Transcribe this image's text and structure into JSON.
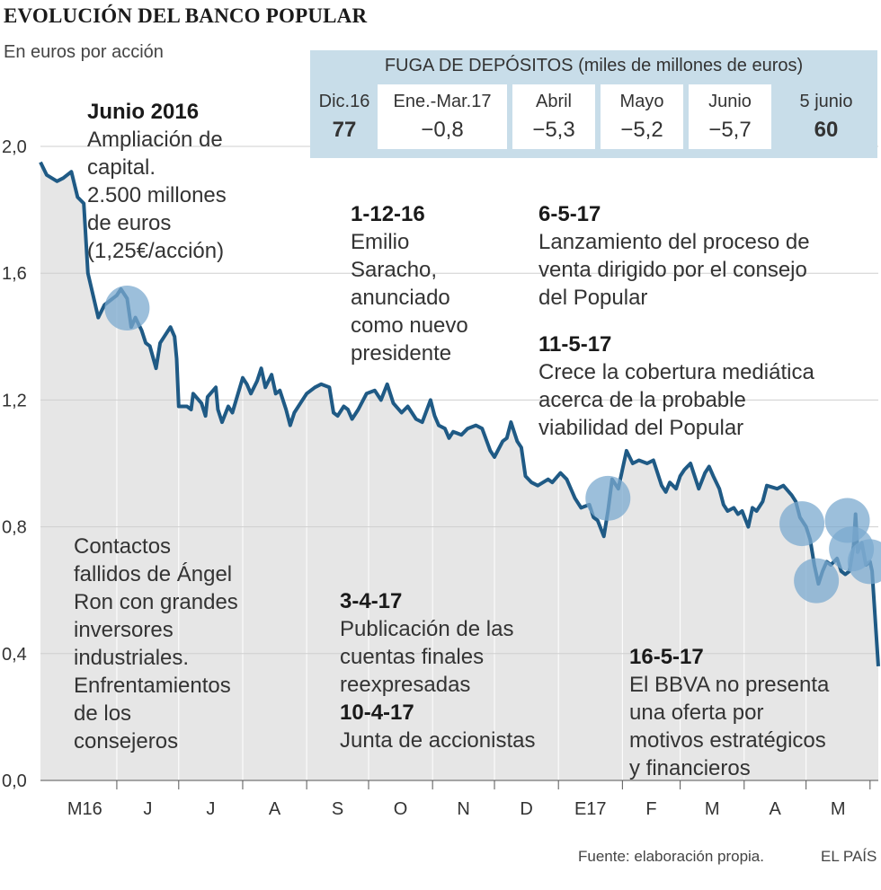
{
  "header": {
    "title": "EVOLUCIÓN DEL BANCO POPULAR",
    "subtitle": "En euros por acción"
  },
  "deposits": {
    "title": "FUGA DE DEPÓSITOS (miles de millones de euros)",
    "items": [
      {
        "label": "Dic.16",
        "value": "77",
        "highlight": true
      },
      {
        "label": "Ene.-Mar.17",
        "value": "−0,8",
        "highlight": false
      },
      {
        "label": "Abril",
        "value": "−5,3",
        "highlight": false
      },
      {
        "label": "Mayo",
        "value": "−5,2",
        "highlight": false
      },
      {
        "label": "Junio",
        "value": "−5,7",
        "highlight": false
      },
      {
        "label": "5 junio",
        "value": "60",
        "highlight": true
      }
    ]
  },
  "annotations": {
    "junio2016": {
      "date": "Junio 2016",
      "lines": [
        "Ampliación de",
        "capital.",
        "2.500 millones",
        "de euros",
        "(1,25€/acción)"
      ]
    },
    "saracho": {
      "date": "1-12-16",
      "lines": [
        "Emilio",
        "Saracho,",
        "anunciado",
        "como nuevo",
        "presidente"
      ]
    },
    "venta": {
      "date": "6-5-17",
      "lines": [
        "Lanzamiento del proceso de",
        "venta dirigido por el consejo",
        "del Popular"
      ]
    },
    "cobertura": {
      "date": "11-5-17",
      "lines": [
        "Crece la cobertura mediática",
        "acerca de la probable",
        "viabilidad del Popular"
      ]
    },
    "contactos": {
      "date": "",
      "lines": [
        "Contactos",
        "fallidos de Ángel",
        "Ron con grandes",
        "inversores",
        "industriales.",
        "Enfrentamientos",
        "de los",
        "consejeros"
      ]
    },
    "cuentas": {
      "date": "3-4-17",
      "lines": [
        "Publicación de las",
        "cuentas finales",
        "reexpresadas"
      ]
    },
    "junta": {
      "date": "10-4-17",
      "lines": [
        "Junta de accionistas"
      ]
    },
    "bbva": {
      "date": "16-5-17",
      "lines": [
        "El BBVA no presenta",
        "una oferta por",
        "motivos estratégicos",
        "y financieros"
      ]
    }
  },
  "footer": {
    "source": "Fuente: elaboración propia.",
    "brand": "EL PAÍS"
  },
  "colors": {
    "line": "#1f5a85",
    "area": "#e6e6e6",
    "marker": "#7ba9cf",
    "panel": "#c8dde9"
  },
  "chart_data": {
    "type": "area",
    "title": "EVOLUCIÓN DEL BANCO POPULAR",
    "ylabel": "En euros por acción",
    "ylim": [
      0,
      2.0
    ],
    "yticks": [
      "2,0",
      "1,6",
      "1,2",
      "0,8",
      "0,4",
      "0,0"
    ],
    "ytick_values": [
      2.0,
      1.6,
      1.2,
      0.8,
      0.4,
      0.0
    ],
    "month_labels": [
      "M16",
      "J",
      "J",
      "A",
      "S",
      "O",
      "N",
      "D",
      "E17",
      "F",
      "M",
      "A",
      "M"
    ],
    "month_starts": [
      "2016-05-01",
      "2016-06-01",
      "2016-07-01",
      "2016-08-01",
      "2016-09-01",
      "2016-10-01",
      "2016-11-01",
      "2016-12-01",
      "2017-01-01",
      "2017-02-01",
      "2017-03-01",
      "2017-04-01",
      "2017-05-01"
    ],
    "xlim": [
      "2016-04-25",
      "2017-06-05"
    ],
    "grid": true,
    "series": [
      {
        "values": [
          [
            "2016-04-25",
            1.95
          ],
          [
            "2016-04-28",
            1.91
          ],
          [
            "2016-05-03",
            1.89
          ],
          [
            "2016-05-06",
            1.9
          ],
          [
            "2016-05-10",
            1.92
          ],
          [
            "2016-05-13",
            1.84
          ],
          [
            "2016-05-16",
            1.82
          ],
          [
            "2016-05-18",
            1.6
          ],
          [
            "2016-05-23",
            1.46
          ],
          [
            "2016-05-26",
            1.5
          ],
          [
            "2016-06-01",
            1.53
          ],
          [
            "2016-06-03",
            1.55
          ],
          [
            "2016-06-06",
            1.52
          ],
          [
            "2016-06-08",
            1.43
          ],
          [
            "2016-06-10",
            1.46
          ],
          [
            "2016-06-13",
            1.42
          ],
          [
            "2016-06-15",
            1.38
          ],
          [
            "2016-06-17",
            1.37
          ],
          [
            "2016-06-20",
            1.3
          ],
          [
            "2016-06-22",
            1.38
          ],
          [
            "2016-06-24",
            1.4
          ],
          [
            "2016-06-27",
            1.43
          ],
          [
            "2016-06-29",
            1.4
          ],
          [
            "2016-06-30",
            1.33
          ],
          [
            "2016-07-01",
            1.18
          ],
          [
            "2016-07-05",
            1.18
          ],
          [
            "2016-07-07",
            1.17
          ],
          [
            "2016-07-08",
            1.22
          ],
          [
            "2016-07-12",
            1.19
          ],
          [
            "2016-07-14",
            1.15
          ],
          [
            "2016-07-15",
            1.21
          ],
          [
            "2016-07-19",
            1.24
          ],
          [
            "2016-07-20",
            1.17
          ],
          [
            "2016-07-22",
            1.13
          ],
          [
            "2016-07-25",
            1.18
          ],
          [
            "2016-07-27",
            1.16
          ],
          [
            "2016-08-01",
            1.27
          ],
          [
            "2016-08-03",
            1.25
          ],
          [
            "2016-08-05",
            1.22
          ],
          [
            "2016-08-08",
            1.26
          ],
          [
            "2016-08-10",
            1.3
          ],
          [
            "2016-08-12",
            1.24
          ],
          [
            "2016-08-15",
            1.28
          ],
          [
            "2016-08-17",
            1.22
          ],
          [
            "2016-08-19",
            1.23
          ],
          [
            "2016-08-22",
            1.17
          ],
          [
            "2016-08-24",
            1.12
          ],
          [
            "2016-08-26",
            1.16
          ],
          [
            "2016-08-29",
            1.19
          ],
          [
            "2016-09-01",
            1.22
          ],
          [
            "2016-09-05",
            1.24
          ],
          [
            "2016-09-08",
            1.25
          ],
          [
            "2016-09-12",
            1.24
          ],
          [
            "2016-09-14",
            1.16
          ],
          [
            "2016-09-16",
            1.15
          ],
          [
            "2016-09-19",
            1.18
          ],
          [
            "2016-09-21",
            1.17
          ],
          [
            "2016-09-23",
            1.14
          ],
          [
            "2016-09-26",
            1.17
          ],
          [
            "2016-09-30",
            1.22
          ],
          [
            "2016-10-04",
            1.23
          ],
          [
            "2016-10-07",
            1.2
          ],
          [
            "2016-10-10",
            1.25
          ],
          [
            "2016-10-13",
            1.19
          ],
          [
            "2016-10-17",
            1.16
          ],
          [
            "2016-10-20",
            1.18
          ],
          [
            "2016-10-24",
            1.14
          ],
          [
            "2016-10-27",
            1.13
          ],
          [
            "2016-10-31",
            1.2
          ],
          [
            "2016-11-02",
            1.15
          ],
          [
            "2016-11-04",
            1.12
          ],
          [
            "2016-11-07",
            1.11
          ],
          [
            "2016-11-09",
            1.08
          ],
          [
            "2016-11-11",
            1.1
          ],
          [
            "2016-11-15",
            1.09
          ],
          [
            "2016-11-18",
            1.11
          ],
          [
            "2016-11-22",
            1.12
          ],
          [
            "2016-11-25",
            1.11
          ],
          [
            "2016-11-29",
            1.04
          ],
          [
            "2016-12-01",
            1.02
          ],
          [
            "2016-12-05",
            1.07
          ],
          [
            "2016-12-07",
            1.08
          ],
          [
            "2016-12-09",
            1.13
          ],
          [
            "2016-12-12",
            1.07
          ],
          [
            "2016-12-14",
            1.05
          ],
          [
            "2016-12-16",
            0.96
          ],
          [
            "2016-12-19",
            0.94
          ],
          [
            "2016-12-22",
            0.93
          ],
          [
            "2016-12-27",
            0.95
          ],
          [
            "2016-12-29",
            0.94
          ],
          [
            "2017-01-02",
            0.97
          ],
          [
            "2017-01-05",
            0.95
          ],
          [
            "2017-01-09",
            0.89
          ],
          [
            "2017-01-12",
            0.86
          ],
          [
            "2017-01-16",
            0.87
          ],
          [
            "2017-01-18",
            0.83
          ],
          [
            "2017-01-20",
            0.82
          ],
          [
            "2017-01-23",
            0.77
          ],
          [
            "2017-01-25",
            0.85
          ],
          [
            "2017-01-27",
            0.95
          ],
          [
            "2017-01-30",
            0.92
          ],
          [
            "2017-02-01",
            0.98
          ],
          [
            "2017-02-03",
            1.04
          ],
          [
            "2017-02-06",
            1.0
          ],
          [
            "2017-02-09",
            1.01
          ],
          [
            "2017-02-13",
            1.0
          ],
          [
            "2017-02-16",
            1.01
          ],
          [
            "2017-02-20",
            0.93
          ],
          [
            "2017-02-22",
            0.91
          ],
          [
            "2017-02-24",
            0.94
          ],
          [
            "2017-02-27",
            0.92
          ],
          [
            "2017-03-01",
            0.96
          ],
          [
            "2017-03-03",
            0.98
          ],
          [
            "2017-03-06",
            1.0
          ],
          [
            "2017-03-08",
            0.96
          ],
          [
            "2017-03-10",
            0.92
          ],
          [
            "2017-03-13",
            0.97
          ],
          [
            "2017-03-15",
            0.99
          ],
          [
            "2017-03-17",
            0.96
          ],
          [
            "2017-03-20",
            0.92
          ],
          [
            "2017-03-22",
            0.87
          ],
          [
            "2017-03-24",
            0.85
          ],
          [
            "2017-03-27",
            0.86
          ],
          [
            "2017-03-29",
            0.84
          ],
          [
            "2017-03-31",
            0.85
          ],
          [
            "2017-04-03",
            0.8
          ],
          [
            "2017-04-05",
            0.86
          ],
          [
            "2017-04-07",
            0.85
          ],
          [
            "2017-04-10",
            0.88
          ],
          [
            "2017-04-12",
            0.93
          ],
          [
            "2017-04-17",
            0.92
          ],
          [
            "2017-04-20",
            0.93
          ],
          [
            "2017-04-24",
            0.9
          ],
          [
            "2017-04-26",
            0.88
          ],
          [
            "2017-04-28",
            0.83
          ],
          [
            "2017-05-01",
            0.8
          ],
          [
            "2017-05-03",
            0.76
          ],
          [
            "2017-05-05",
            0.68
          ],
          [
            "2017-05-07",
            0.62
          ],
          [
            "2017-05-09",
            0.66
          ],
          [
            "2017-05-11",
            0.69
          ],
          [
            "2017-05-13",
            0.68
          ],
          [
            "2017-05-16",
            0.7
          ],
          [
            "2017-05-18",
            0.66
          ],
          [
            "2017-05-20",
            0.65
          ],
          [
            "2017-05-22",
            0.66
          ],
          [
            "2017-05-24",
            0.74
          ],
          [
            "2017-05-25",
            0.84
          ],
          [
            "2017-05-26",
            0.72
          ],
          [
            "2017-05-28",
            0.75
          ],
          [
            "2017-05-30",
            0.68
          ],
          [
            "2017-06-01",
            0.69
          ],
          [
            "2017-06-02",
            0.66
          ],
          [
            "2017-06-05",
            0.36
          ]
        ]
      }
    ],
    "markers": [
      {
        "date": "2016-06-06",
        "value": 1.49
      },
      {
        "date": "2017-01-25",
        "value": 0.89
      },
      {
        "date": "2017-04-29",
        "value": 0.81
      },
      {
        "date": "2017-05-06",
        "value": 0.63
      },
      {
        "date": "2017-05-21",
        "value": 0.82
      },
      {
        "date": "2017-05-23",
        "value": 0.73
      },
      {
        "date": "2017-06-01",
        "value": 0.69
      }
    ]
  }
}
